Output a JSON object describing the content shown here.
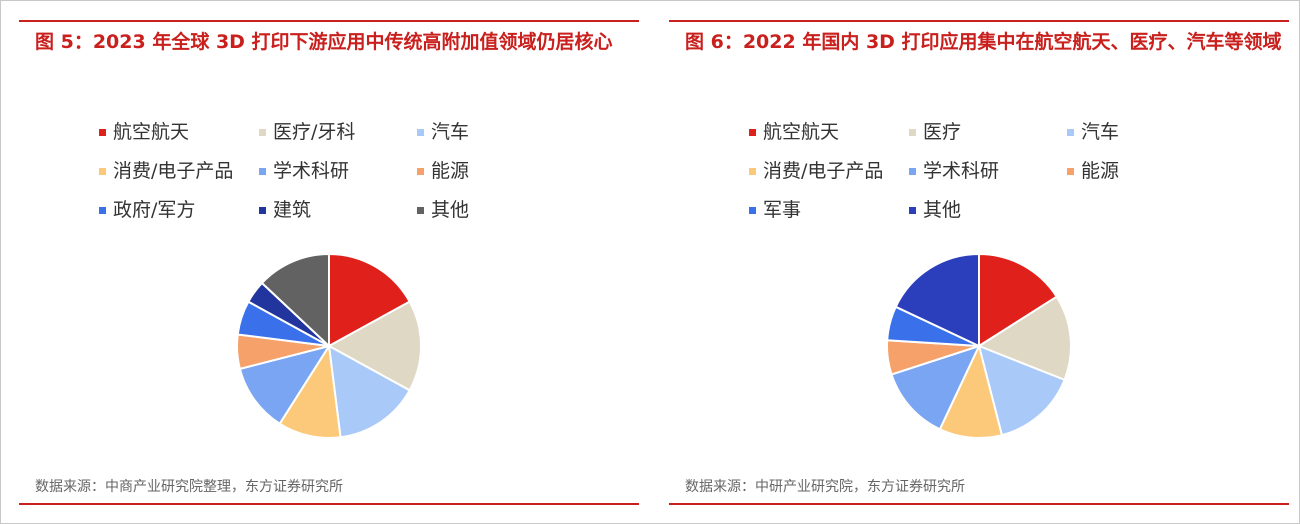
{
  "chart_data": [
    {
      "type": "pie",
      "title": "图 5：2023 年全球 3D 打印下游应用中传统高附加值领域仍居核心",
      "categories": [
        "航空航天",
        "医疗/牙科",
        "汽车",
        "消费/电子产品",
        "学术科研",
        "能源",
        "政府/军方",
        "建筑",
        "其他"
      ],
      "values": [
        17,
        16,
        15,
        11,
        12,
        6,
        6,
        4,
        13
      ],
      "colors": [
        "#e0201b",
        "#dfd8c4",
        "#a9c9f8",
        "#fcc97a",
        "#7aa5f2",
        "#f6a06a",
        "#3a71eb",
        "#22349e",
        "#626262"
      ],
      "source": "数据来源：中商产业研究院整理，东方证券研究所"
    },
    {
      "type": "pie",
      "title": "图 6：2022 年国内 3D 打印应用集中在航空航天、医疗、汽车等领域",
      "categories": [
        "航空航天",
        "医疗",
        "汽车",
        "消费/电子产品",
        "学术科研",
        "能源",
        "军事",
        "其他"
      ],
      "values": [
        16,
        15,
        15,
        11,
        13,
        6,
        6,
        18
      ],
      "colors": [
        "#e0201b",
        "#dfd8c4",
        "#a9c9f8",
        "#fcc97a",
        "#7aa5f2",
        "#f6a06a",
        "#3a71eb",
        "#2b3fbd"
      ],
      "source": "数据来源：中研产业研究院，东方证券研究所"
    }
  ]
}
